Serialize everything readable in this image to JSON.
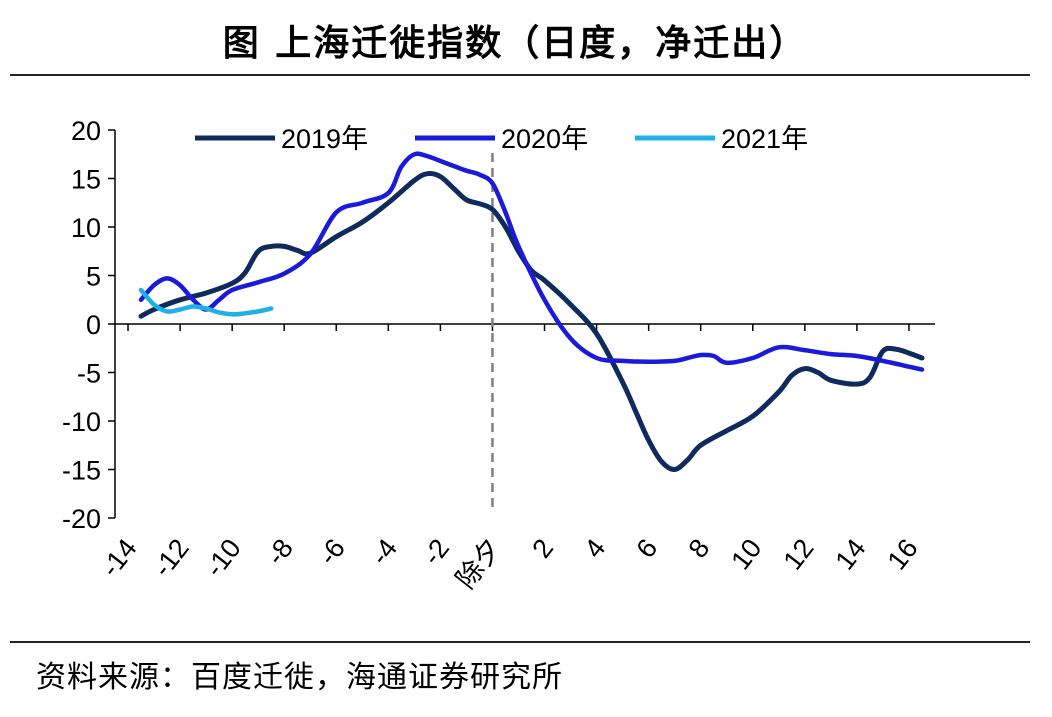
{
  "title": "图  上海迁徙指数（日度，净迁出）",
  "source": "资料来源：百度迁徙，海通证券研究所",
  "colors": {
    "s2019": "#0f2a5c",
    "s2020": "#1a1adc",
    "s2021": "#1fb1e6",
    "axis": "#000000",
    "marker": "#808080"
  },
  "chart_data": {
    "type": "line",
    "title": "上海迁徙指数（日度，净迁出）",
    "xlabel": "",
    "ylabel": "",
    "xlim": [
      -14,
      16
    ],
    "ylim": [
      -20,
      20
    ],
    "x_ticks": [
      {
        "value": -14,
        "label": "-14"
      },
      {
        "value": -12,
        "label": "-12"
      },
      {
        "value": -10,
        "label": "-10"
      },
      {
        "value": -8,
        "label": "-8"
      },
      {
        "value": -6,
        "label": "-6"
      },
      {
        "value": -4,
        "label": "-4"
      },
      {
        "value": -2,
        "label": "-2"
      },
      {
        "value": 0,
        "label": "除夕"
      },
      {
        "value": 2,
        "label": "2"
      },
      {
        "value": 4,
        "label": "4"
      },
      {
        "value": 6,
        "label": "6"
      },
      {
        "value": 8,
        "label": "8"
      },
      {
        "value": 10,
        "label": "10"
      },
      {
        "value": 12,
        "label": "12"
      },
      {
        "value": 14,
        "label": "14"
      },
      {
        "value": 16,
        "label": "16"
      }
    ],
    "y_ticks": [
      20,
      15,
      10,
      5,
      0,
      -5,
      -10,
      -15,
      -20
    ],
    "grid": false,
    "legend": "top",
    "marker_line_x": 0,
    "series": [
      {
        "name": "2019年",
        "x": [
          -13.5,
          -13,
          -12,
          -11,
          -10,
          -9.5,
          -9,
          -8.5,
          -8,
          -7.5,
          -7,
          -6,
          -5,
          -4,
          -3,
          -2.5,
          -2,
          -1.5,
          -1,
          -0.5,
          0,
          0.5,
          1,
          1.5,
          2,
          3,
          4,
          5,
          5.5,
          6,
          6.5,
          7,
          7.5,
          8,
          9,
          10,
          11,
          11.5,
          12,
          12.5,
          13,
          14,
          14.5,
          15,
          15.5,
          16,
          16.5
        ],
        "values": [
          0.8,
          1.5,
          2.5,
          3.2,
          4.2,
          5.3,
          7.5,
          8.0,
          8.0,
          7.6,
          7.3,
          9.0,
          10.5,
          12.5,
          14.8,
          15.5,
          15.2,
          14.0,
          12.8,
          12.4,
          11.8,
          10.0,
          7.5,
          5.5,
          4.5,
          2.0,
          -1.0,
          -6.0,
          -9.0,
          -12.0,
          -14.2,
          -15.0,
          -14.0,
          -12.5,
          -11.0,
          -9.5,
          -7.0,
          -5.3,
          -4.6,
          -5.0,
          -5.8,
          -6.2,
          -5.5,
          -2.8,
          -2.6,
          -3.0,
          -3.5
        ]
      },
      {
        "name": "2020年",
        "x": [
          -13.5,
          -13,
          -12.5,
          -12,
          -11.5,
          -11,
          -10.5,
          -10,
          -9,
          -8,
          -7,
          -6,
          -5,
          -4,
          -3.5,
          -3,
          -2.5,
          -2,
          -1.5,
          -1,
          -0.5,
          0,
          0.5,
          1,
          2,
          3,
          4,
          5,
          6,
          7,
          7.5,
          8,
          8.5,
          9,
          10,
          11,
          12,
          13,
          14,
          15,
          16,
          16.5
        ],
        "values": [
          2.5,
          4.0,
          4.7,
          4.0,
          2.5,
          1.5,
          2.5,
          3.5,
          4.3,
          5.2,
          7.2,
          11.5,
          12.5,
          13.5,
          16.2,
          17.5,
          17.3,
          16.8,
          16.3,
          15.8,
          15.4,
          14.5,
          11.5,
          8.0,
          2.5,
          -1.5,
          -3.5,
          -3.8,
          -3.9,
          -3.8,
          -3.5,
          -3.2,
          -3.3,
          -4.0,
          -3.5,
          -2.4,
          -2.7,
          -3.1,
          -3.3,
          -3.8,
          -4.4,
          -4.7
        ]
      },
      {
        "name": "2021年",
        "x": [
          -13.5,
          -13,
          -12.5,
          -12,
          -11.5,
          -11,
          -10.5,
          -10,
          -9.5,
          -9,
          -8.5
        ],
        "values": [
          3.5,
          2.0,
          1.3,
          1.5,
          1.8,
          1.6,
          1.2,
          1.0,
          1.1,
          1.3,
          1.6
        ]
      }
    ]
  }
}
